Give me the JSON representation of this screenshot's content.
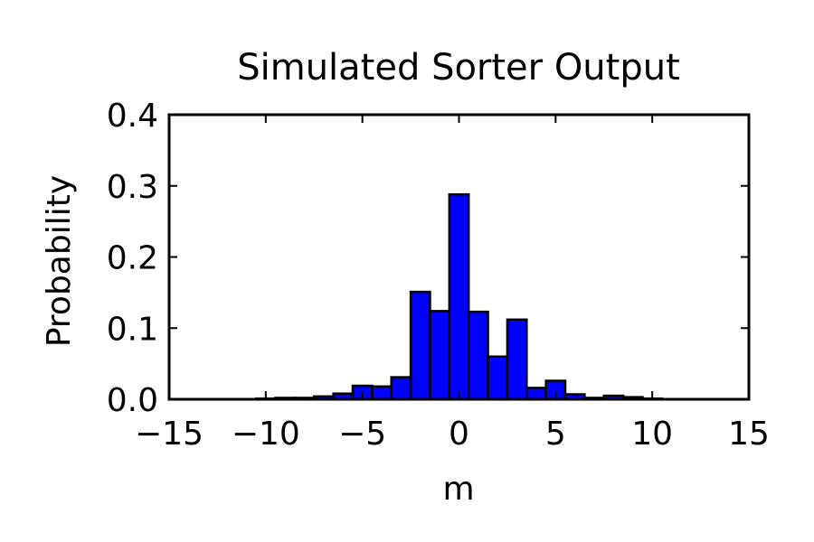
{
  "chart_data": {
    "type": "histogram",
    "title": "Simulated Sorter Output",
    "xlabel": "m",
    "ylabel": "Probability",
    "bins": [
      -10.5,
      -9.5,
      -8.5,
      -7.5,
      -6.5,
      -5.5,
      -4.5,
      -3.5,
      -2.5,
      -1.5,
      -0.5,
      0.5,
      1.5,
      2.5,
      3.5,
      4.5,
      5.5,
      6.5,
      7.5,
      8.5,
      9.5,
      10.5
    ],
    "values": [
      0.001,
      0.002,
      0.002,
      0.004,
      0.008,
      0.019,
      0.018,
      0.031,
      0.151,
      0.124,
      0.288,
      0.123,
      0.06,
      0.112,
      0.016,
      0.026,
      0.007,
      0.002,
      0.005,
      0.003,
      0.001
    ],
    "color": "#0000ff",
    "xlim": [
      -15,
      15
    ],
    "xticks": [
      {
        "value": -15,
        "label": "−15"
      },
      {
        "value": -10,
        "label": "−10"
      },
      {
        "value": -5,
        "label": "−5"
      },
      0,
      5,
      10,
      15
    ],
    "ylim": [
      0,
      0.4
    ],
    "yticks": [
      {
        "value": 0,
        "label": "0.0"
      },
      0.1,
      0.2,
      0.3,
      0.4
    ]
  }
}
